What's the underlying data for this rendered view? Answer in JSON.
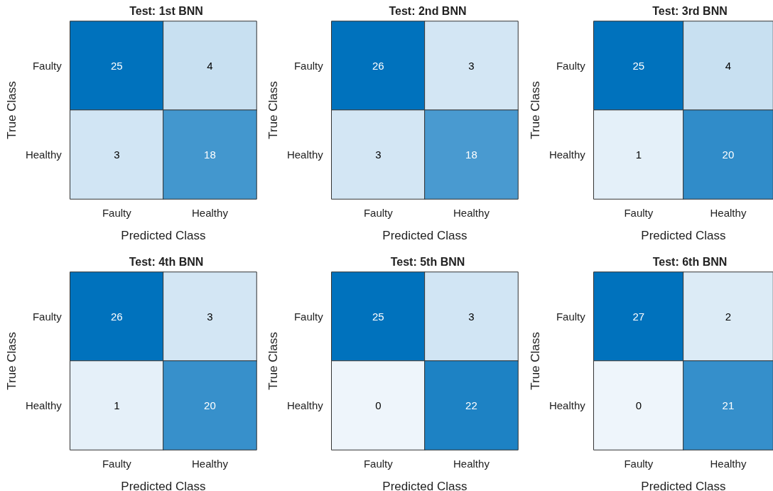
{
  "chart_data": [
    {
      "type": "heatmap",
      "title": "Test: 1st BNN",
      "xlabel": "Predicted Class",
      "ylabel": "True Class",
      "categories": [
        "Faulty",
        "Healthy"
      ],
      "y_categories": [
        "Faulty",
        "Healthy"
      ],
      "cells": [
        [
          25,
          4
        ],
        [
          3,
          18
        ]
      ],
      "data_labels": true
    },
    {
      "type": "heatmap",
      "title": "Test: 2nd BNN",
      "xlabel": "Predicted Class",
      "ylabel": "True Class",
      "categories": [
        "Faulty",
        "Healthy"
      ],
      "y_categories": [
        "Faulty",
        "Healthy"
      ],
      "cells": [
        [
          26,
          3
        ],
        [
          3,
          18
        ]
      ],
      "data_labels": true
    },
    {
      "type": "heatmap",
      "title": "Test: 3rd BNN",
      "xlabel": "Predicted Class",
      "ylabel": "True Class",
      "categories": [
        "Faulty",
        "Healthy"
      ],
      "y_categories": [
        "Faulty",
        "Healthy"
      ],
      "cells": [
        [
          25,
          4
        ],
        [
          1,
          20
        ]
      ],
      "data_labels": true
    },
    {
      "type": "heatmap",
      "title": "Test: 4th BNN",
      "xlabel": "Predicted Class",
      "ylabel": "True Class",
      "categories": [
        "Faulty",
        "Healthy"
      ],
      "y_categories": [
        "Faulty",
        "Healthy"
      ],
      "cells": [
        [
          26,
          3
        ],
        [
          1,
          20
        ]
      ],
      "data_labels": true
    },
    {
      "type": "heatmap",
      "title": "Test: 5th BNN",
      "xlabel": "Predicted Class",
      "ylabel": "True Class",
      "categories": [
        "Faulty",
        "Healthy"
      ],
      "y_categories": [
        "Faulty",
        "Healthy"
      ],
      "cells": [
        [
          25,
          3
        ],
        [
          0,
          22
        ]
      ],
      "data_labels": true
    },
    {
      "type": "heatmap",
      "title": "Test: 6th BNN",
      "xlabel": "Predicted Class",
      "ylabel": "True Class",
      "categories": [
        "Faulty",
        "Healthy"
      ],
      "y_categories": [
        "Faulty",
        "Healthy"
      ],
      "cells": [
        [
          27,
          2
        ],
        [
          0,
          21
        ]
      ],
      "data_labels": true
    }
  ]
}
